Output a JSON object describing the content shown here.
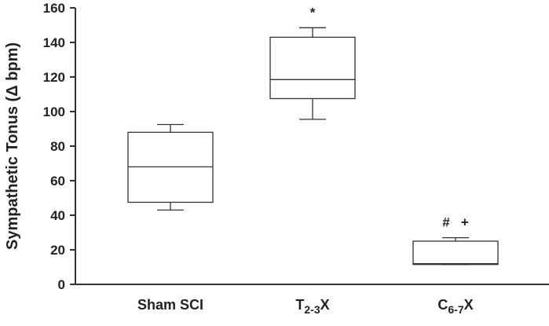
{
  "chart_data": {
    "type": "box",
    "ylabel": "Sympathetic Tonus (Δ bpm)",
    "ylim": [
      0,
      160
    ],
    "yticks": [
      0,
      20,
      40,
      60,
      80,
      100,
      120,
      140,
      160
    ],
    "categories": [
      {
        "label": "Sham SCI",
        "main": "Sham SCI",
        "sub": "",
        "suffix": ""
      },
      {
        "label": "T2-3X",
        "main": "T",
        "sub": "2-3",
        "suffix": "X"
      },
      {
        "label": "C6-7X",
        "main": "C",
        "sub": "6-7",
        "suffix": "X"
      }
    ],
    "boxes": [
      {
        "whisker_low": 43,
        "q1": 47.5,
        "median": 68,
        "q3": 88,
        "whisker_high": 92.5
      },
      {
        "whisker_low": 95.5,
        "q1": 107.5,
        "median": 118.5,
        "q3": 143,
        "whisker_high": 148.5
      },
      {
        "whisker_low": 11.5,
        "q1": 11.5,
        "median": 12,
        "q3": 25,
        "whisker_high": 27
      }
    ],
    "annotations": [
      {
        "category": 1,
        "text": "*"
      },
      {
        "category": 2,
        "text": "#   +"
      }
    ]
  }
}
